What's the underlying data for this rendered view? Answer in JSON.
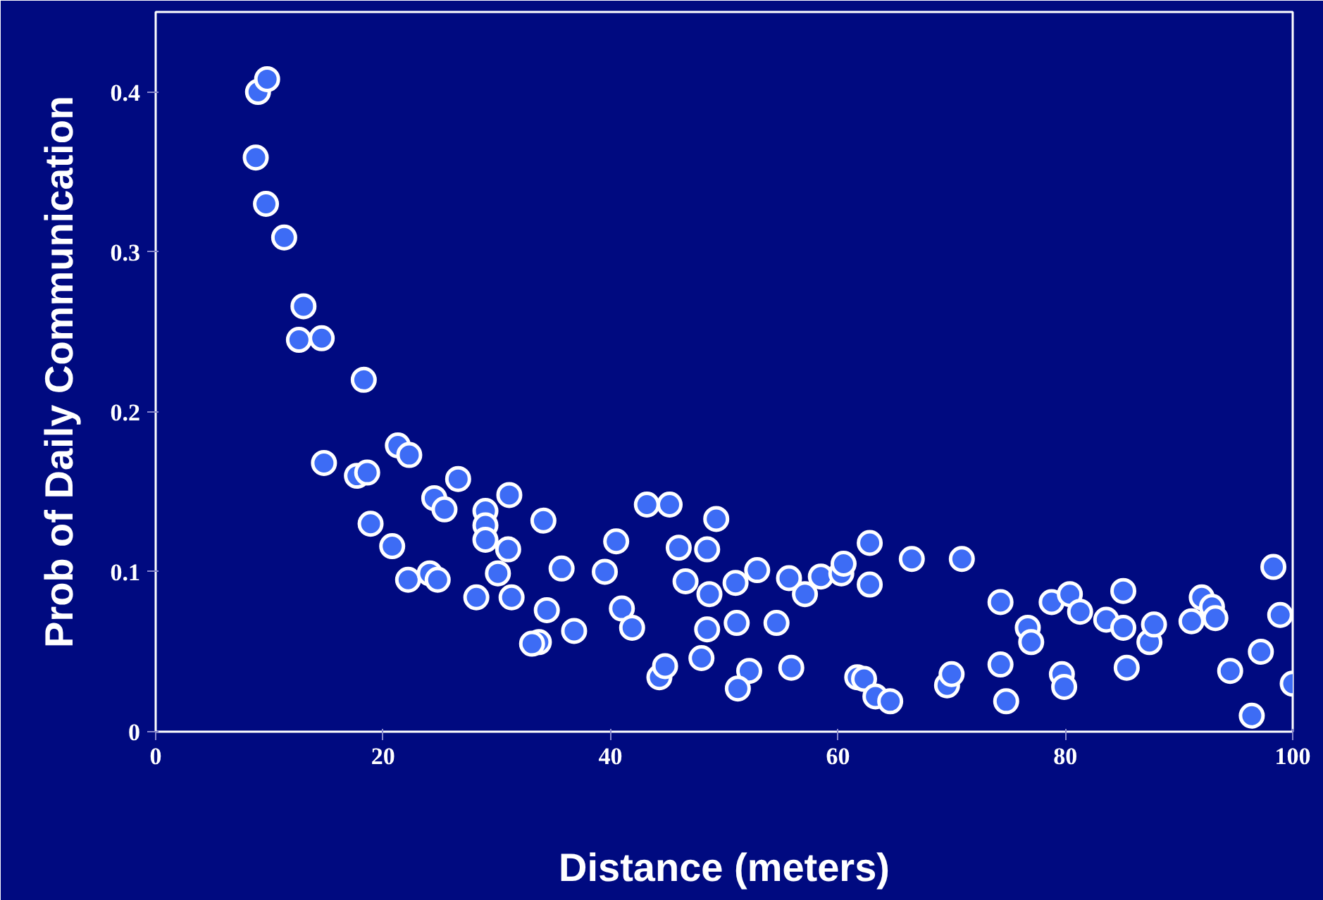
{
  "chart_data": {
    "type": "scatter",
    "xlabel": "Distance (meters)",
    "ylabel": "Prob of Daily Communication",
    "xlim": [
      0,
      100
    ],
    "ylim": [
      0,
      0.45
    ],
    "xticks": [
      0,
      20,
      40,
      60,
      80,
      100
    ],
    "yticks": [
      0,
      0.1,
      0.2,
      0.3,
      0.4
    ],
    "grid": false,
    "marker": "circle",
    "series": [
      {
        "color": "#3d6cf5",
        "x": [
          9.0,
          9.8,
          8.8,
          9.7,
          11.3,
          13.0,
          12.6,
          14.6,
          18.3,
          14.8,
          17.7,
          18.6,
          18.9,
          21.3,
          22.3,
          20.8,
          22.2,
          24.5,
          25.4,
          26.6,
          24.1,
          24.8,
          28.2,
          29.0,
          29.0,
          29.0,
          31.1,
          30.1,
          31.0,
          31.3,
          34.1,
          34.4,
          33.7,
          33.1,
          35.7,
          36.8,
          39.5,
          40.5,
          41.0,
          41.9,
          43.2,
          45.2,
          44.3,
          44.8,
          46.0,
          46.6,
          48.5,
          48.7,
          49.3,
          48.5,
          48.0,
          51.0,
          51.1,
          52.2,
          52.9,
          51.2,
          54.6,
          55.7,
          55.9,
          57.1,
          58.5,
          60.3,
          60.5,
          61.7,
          62.3,
          62.8,
          62.8,
          63.3,
          64.6,
          66.5,
          69.6,
          70.0,
          70.9,
          74.3,
          74.3,
          74.8,
          76.7,
          77.0,
          78.8,
          79.7,
          79.9,
          80.4,
          81.3,
          83.6,
          85.1,
          85.1,
          85.4,
          87.4,
          87.8,
          91.1,
          92.0,
          92.9,
          93.2,
          94.5,
          96.4,
          97.2,
          98.3,
          98.9,
          100
        ],
        "values": [
          0.4,
          0.408,
          0.359,
          0.33,
          0.309,
          0.266,
          0.245,
          0.246,
          0.22,
          0.168,
          0.16,
          0.162,
          0.13,
          0.179,
          0.173,
          0.116,
          0.095,
          0.146,
          0.139,
          0.158,
          0.099,
          0.095,
          0.084,
          0.138,
          0.129,
          0.12,
          0.148,
          0.099,
          0.114,
          0.084,
          0.132,
          0.076,
          0.056,
          0.055,
          0.102,
          0.063,
          0.1,
          0.119,
          0.077,
          0.065,
          0.142,
          0.142,
          0.034,
          0.041,
          0.115,
          0.094,
          0.114,
          0.086,
          0.133,
          0.064,
          0.046,
          0.093,
          0.068,
          0.038,
          0.101,
          0.027,
          0.068,
          0.096,
          0.04,
          0.086,
          0.097,
          0.099,
          0.105,
          0.034,
          0.033,
          0.118,
          0.092,
          0.022,
          0.019,
          0.108,
          0.029,
          0.036,
          0.108,
          0.081,
          0.042,
          0.019,
          0.065,
          0.056,
          0.081,
          0.036,
          0.028,
          0.086,
          0.075,
          0.07,
          0.088,
          0.065,
          0.04,
          0.056,
          0.067,
          0.069,
          0.084,
          0.078,
          0.071,
          0.038,
          0.01,
          0.05,
          0.103,
          0.073,
          0.03
        ]
      }
    ]
  }
}
